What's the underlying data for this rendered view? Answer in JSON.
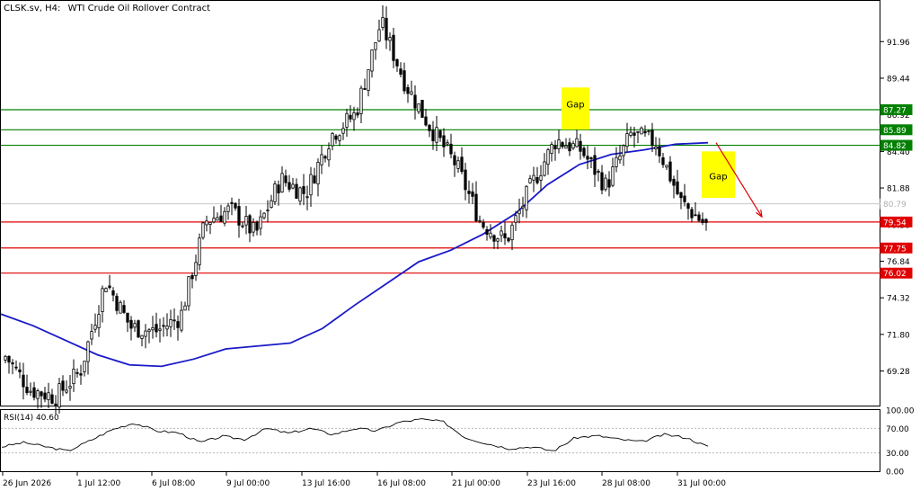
{
  "header": {
    "symbol": "CLSK.sv, H4:",
    "description": "WTI Crude Oil Rollover Contract"
  },
  "rsi_panel": {
    "label": "RSI(14) 40.60",
    "ticks": [
      "100.00",
      "70.00",
      "30.00",
      "0.00"
    ]
  },
  "annotations": {
    "gap_1": "Gap",
    "gap_2": "Gap"
  },
  "colors": {
    "bull_candle": "#ffffff",
    "bear_candle": "#000000",
    "moving_average": "#1a1ac8",
    "support_line": "#e00000",
    "resistance_line": "#008000",
    "gap_box": "#ffff00",
    "arrow": "#e00000"
  },
  "chart_data": {
    "type": "candlestick",
    "price_axis": {
      "range": [
        66.9,
        94.7
      ],
      "ticks": [
        "91.96",
        "89.44",
        "86.92",
        "84.40",
        "81.88",
        "79.36",
        "76.84",
        "74.32",
        "71.80",
        "69.28"
      ]
    },
    "time_axis": {
      "labels": [
        "26 Jun 2026",
        "1 Jul 12:00",
        "6 Jul 08:00",
        "9 Jul 00:00",
        "13 Jul 16:00",
        "16 Jul 08:00",
        "21 Jul 00:00",
        "23 Jul 16:00",
        "28 Jul 08:00",
        "31 Jul 00:00"
      ]
    },
    "horizontal_levels": [
      {
        "value": 87.27,
        "label": "87.27",
        "role": "resistance"
      },
      {
        "value": 85.89,
        "label": "85.89",
        "role": "resistance"
      },
      {
        "value": 84.82,
        "label": "84.82",
        "role": "resistance"
      },
      {
        "value": 79.54,
        "label": "79.54",
        "role": "support"
      },
      {
        "value": 77.75,
        "label": "77.75",
        "role": "support"
      },
      {
        "value": 76.02,
        "label": "76.02",
        "role": "support"
      }
    ],
    "current_price": {
      "value": 80.79,
      "label": "80.79"
    },
    "key_points": [
      {
        "value": 70.3
      },
      {
        "value": 68.0
      },
      {
        "value": 67.5
      },
      {
        "value": 69.3
      },
      {
        "value": 75.5
      },
      {
        "value": 72.3
      },
      {
        "value": 72.0
      },
      {
        "value": 73.0
      },
      {
        "value": 79.6
      },
      {
        "value": 80.4
      },
      {
        "value": 78.7
      },
      {
        "value": 82.5
      },
      {
        "value": 81.5
      },
      {
        "value": 85.5
      },
      {
        "value": 87.0
      },
      {
        "value": 93.3
      },
      {
        "value": 89.0
      },
      {
        "value": 86.0
      },
      {
        "value": 83.5
      },
      {
        "value": 79.5
      },
      {
        "value": 78.2
      },
      {
        "value": 82.0
      },
      {
        "value": 85.2
      },
      {
        "value": 84.5
      },
      {
        "value": 82.0
      },
      {
        "value": 85.6
      },
      {
        "value": 85.0
      },
      {
        "value": 80.9
      },
      {
        "value": 79.3
      }
    ],
    "moving_average": [
      {
        "value": 73.2
      },
      {
        "value": 72.4
      },
      {
        "value": 71.4
      },
      {
        "value": 70.4
      },
      {
        "value": 69.7
      },
      {
        "value": 69.6
      },
      {
        "value": 70.1
      },
      {
        "value": 70.8
      },
      {
        "value": 71.0
      },
      {
        "value": 71.2
      },
      {
        "value": 72.2
      },
      {
        "value": 73.8
      },
      {
        "value": 75.3
      },
      {
        "value": 76.8
      },
      {
        "value": 77.6
      },
      {
        "value": 78.7
      },
      {
        "value": 80.1
      },
      {
        "value": 82.1
      },
      {
        "value": 83.5
      },
      {
        "value": 84.2
      },
      {
        "value": 84.5
      },
      {
        "value": 84.9
      },
      {
        "value": 85.0
      }
    ],
    "rsi": [
      {
        "value": 40
      },
      {
        "value": 47
      },
      {
        "value": 40
      },
      {
        "value": 33
      },
      {
        "value": 50
      },
      {
        "value": 68
      },
      {
        "value": 79
      },
      {
        "value": 66
      },
      {
        "value": 63
      },
      {
        "value": 47
      },
      {
        "value": 57
      },
      {
        "value": 52
      },
      {
        "value": 70
      },
      {
        "value": 62
      },
      {
        "value": 70
      },
      {
        "value": 60
      },
      {
        "value": 70
      },
      {
        "value": 66
      },
      {
        "value": 80
      },
      {
        "value": 85
      },
      {
        "value": 81
      },
      {
        "value": 55
      },
      {
        "value": 45
      },
      {
        "value": 37
      },
      {
        "value": 40
      },
      {
        "value": 33
      },
      {
        "value": 55
      },
      {
        "value": 58
      },
      {
        "value": 52
      },
      {
        "value": 48
      },
      {
        "value": 60
      },
      {
        "value": 55
      },
      {
        "value": 40
      }
    ],
    "gap_zones": [
      {
        "label": "Gap",
        "top": 88.8,
        "bottom": 85.9
      },
      {
        "label": "Gap",
        "top": 84.4,
        "bottom": 81.2
      }
    ],
    "arrow": {
      "from": 85.0,
      "to": 79.9
    }
  }
}
